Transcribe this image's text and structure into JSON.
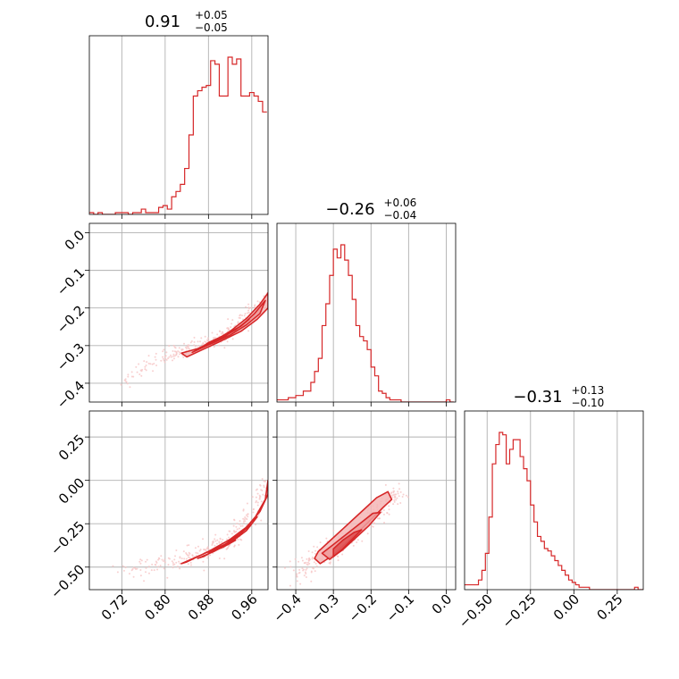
{
  "chart_data": {
    "type": "corner",
    "colors": {
      "main": "#d62728",
      "fill": "#f4b6b6",
      "scatter": "#f6c5c5",
      "grid": "#b0b0b0"
    },
    "grid": true,
    "parameters": [
      {
        "range": [
          0.66,
          0.99
        ],
        "ticks": [
          0.72,
          0.8,
          0.88,
          0.96
        ],
        "tick_labels": [
          "0.72",
          "0.80",
          "0.88",
          "0.96"
        ],
        "title": {
          "median": "0.91",
          "plus": "+0.05",
          "minus": "−0.05"
        }
      },
      {
        "range": [
          -0.45,
          0.025
        ],
        "ticks": [
          -0.4,
          -0.3,
          -0.2,
          -0.1,
          0.0
        ],
        "tick_labels": [
          "−0.4",
          "−0.3",
          "−0.2",
          "−0.1",
          "0.0"
        ],
        "title": {
          "median": "−0.26",
          "plus": "+0.06",
          "minus": "−0.04"
        }
      },
      {
        "range": [
          -0.63,
          0.4
        ],
        "ticks": [
          -0.5,
          -0.25,
          0.0,
          0.25
        ],
        "tick_labels": [
          "−0.50",
          "−0.25",
          "0.00",
          "0.25"
        ],
        "title": {
          "median": "−0.31",
          "plus": "+0.13",
          "minus": "−0.10"
        }
      }
    ],
    "histograms": [
      {
        "param": 0,
        "bin_edges": [
          0.66,
          0.668,
          0.676,
          0.684,
          0.692,
          0.7,
          0.708,
          0.716,
          0.724,
          0.732,
          0.74,
          0.748,
          0.756,
          0.764,
          0.772,
          0.78,
          0.788,
          0.796,
          0.804,
          0.812,
          0.82,
          0.828,
          0.836,
          0.844,
          0.852,
          0.86,
          0.868,
          0.876,
          0.884,
          0.892,
          0.9,
          0.908,
          0.916,
          0.924,
          0.932,
          0.94,
          0.948,
          0.956,
          0.964,
          0.972,
          0.98,
          0.988
        ],
        "counts": [
          1,
          0,
          1,
          0,
          0,
          0,
          1,
          1,
          1,
          0,
          1,
          1,
          3,
          1,
          1,
          1,
          4,
          5,
          3,
          10,
          13,
          17,
          26,
          45,
          67,
          70,
          72,
          73,
          87,
          85,
          67,
          67,
          89,
          85,
          88,
          67,
          67,
          69,
          67,
          64,
          58
        ]
      },
      {
        "param": 1,
        "bin_edges": [
          -0.45,
          -0.44,
          -0.43,
          -0.42,
          -0.41,
          -0.4,
          -0.39,
          -0.38,
          -0.37,
          -0.36,
          -0.35,
          -0.34,
          -0.33,
          -0.32,
          -0.31,
          -0.3,
          -0.29,
          -0.28,
          -0.27,
          -0.26,
          -0.25,
          -0.24,
          -0.23,
          -0.22,
          -0.21,
          -0.2,
          -0.19,
          -0.18,
          -0.17,
          -0.16,
          -0.15,
          -0.14,
          -0.13,
          -0.12,
          -0.11,
          -0.1,
          -0.09,
          -0.08,
          -0.07,
          -0.06,
          -0.05,
          -0.04,
          -0.03,
          -0.02,
          -0.01,
          0.0,
          0.01,
          0.02
        ],
        "counts": [
          1,
          1,
          1,
          2,
          2,
          3,
          3,
          5,
          5,
          9,
          14,
          20,
          35,
          45,
          58,
          70,
          66,
          72,
          65,
          58,
          47,
          35,
          30,
          28,
          24,
          16,
          12,
          5,
          4,
          2,
          1,
          1,
          1,
          0,
          0,
          0,
          0,
          0,
          0,
          0,
          0,
          0,
          0,
          0,
          0,
          1,
          0
        ]
      },
      {
        "param": 2,
        "bin_edges": [
          -0.63,
          -0.61,
          -0.59,
          -0.57,
          -0.55,
          -0.53,
          -0.51,
          -0.49,
          -0.47,
          -0.45,
          -0.43,
          -0.41,
          -0.39,
          -0.37,
          -0.35,
          -0.33,
          -0.31,
          -0.29,
          -0.27,
          -0.25,
          -0.23,
          -0.21,
          -0.19,
          -0.17,
          -0.15,
          -0.13,
          -0.11,
          -0.09,
          -0.07,
          -0.05,
          -0.03,
          -0.01,
          0.01,
          0.03,
          0.05,
          0.07,
          0.09,
          0.11,
          0.13,
          0.15,
          0.17,
          0.19,
          0.21,
          0.23,
          0.25,
          0.27,
          0.29,
          0.31,
          0.33,
          0.35,
          0.37,
          0.39,
          0.4
        ],
        "counts": [
          2,
          2,
          2,
          2,
          4,
          8,
          15,
          30,
          52,
          60,
          65,
          64,
          52,
          58,
          62,
          62,
          55,
          50,
          45,
          35,
          28,
          22,
          20,
          17,
          16,
          14,
          12,
          10,
          8,
          6,
          4,
          3,
          2,
          1,
          1,
          1,
          0,
          0,
          0,
          0,
          0,
          0,
          0,
          0,
          0,
          0,
          0,
          0,
          0,
          1,
          0,
          0
        ]
      }
    ],
    "pair_plots": [
      {
        "x_param": 0,
        "y_param": 1,
        "contours": [
          [
            [
              0.83,
              -0.32
            ],
            [
              0.86,
              -0.308
            ],
            [
              0.89,
              -0.288
            ],
            [
              0.92,
              -0.262
            ],
            [
              0.95,
              -0.228
            ],
            [
              0.975,
              -0.19
            ],
            [
              0.99,
              -0.16
            ],
            [
              0.99,
              -0.2
            ],
            [
              0.97,
              -0.23
            ],
            [
              0.94,
              -0.262
            ],
            [
              0.9,
              -0.29
            ],
            [
              0.87,
              -0.31
            ],
            [
              0.84,
              -0.33
            ]
          ],
          [
            [
              0.85,
              -0.318
            ],
            [
              0.88,
              -0.298
            ],
            [
              0.91,
              -0.275
            ],
            [
              0.94,
              -0.248
            ],
            [
              0.965,
              -0.215
            ],
            [
              0.985,
              -0.18
            ],
            [
              0.975,
              -0.215
            ],
            [
              0.95,
              -0.245
            ],
            [
              0.92,
              -0.272
            ],
            [
              0.89,
              -0.292
            ],
            [
              0.86,
              -0.31
            ]
          ],
          [
            [
              0.87,
              -0.302
            ],
            [
              0.9,
              -0.282
            ],
            [
              0.93,
              -0.258
            ],
            [
              0.955,
              -0.23
            ],
            [
              0.94,
              -0.248
            ],
            [
              0.91,
              -0.272
            ],
            [
              0.88,
              -0.292
            ]
          ]
        ],
        "scatter_center": [
          [
            0.72,
            -0.4
          ],
          [
            0.8,
            -0.33
          ],
          [
            0.84,
            -0.31
          ],
          [
            0.88,
            -0.29
          ],
          [
            0.92,
            -0.262
          ],
          [
            0.96,
            -0.215
          ],
          [
            0.99,
            -0.17
          ]
        ],
        "scatter_spread": 0.035
      },
      {
        "x_param": 0,
        "y_param": 2,
        "contours": [
          [
            [
              0.83,
              -0.48
            ],
            [
              0.87,
              -0.425
            ],
            [
              0.91,
              -0.37
            ],
            [
              0.94,
              -0.305
            ],
            [
              0.965,
              -0.22
            ],
            [
              0.985,
              -0.11
            ],
            [
              0.99,
              0.0
            ],
            [
              0.99,
              -0.08
            ],
            [
              0.975,
              -0.18
            ],
            [
              0.95,
              -0.27
            ],
            [
              0.92,
              -0.34
            ],
            [
              0.88,
              -0.41
            ],
            [
              0.84,
              -0.47
            ]
          ],
          [
            [
              0.86,
              -0.45
            ],
            [
              0.89,
              -0.41
            ],
            [
              0.92,
              -0.36
            ],
            [
              0.95,
              -0.29
            ],
            [
              0.97,
              -0.21
            ],
            [
              0.96,
              -0.25
            ],
            [
              0.93,
              -0.33
            ],
            [
              0.9,
              -0.39
            ],
            [
              0.87,
              -0.44
            ]
          ],
          [
            [
              0.88,
              -0.42
            ],
            [
              0.91,
              -0.38
            ],
            [
              0.93,
              -0.345
            ],
            [
              0.9,
              -0.39
            ]
          ]
        ],
        "scatter_center": [
          [
            0.72,
            -0.53
          ],
          [
            0.8,
            -0.49
          ],
          [
            0.84,
            -0.455
          ],
          [
            0.88,
            -0.405
          ],
          [
            0.92,
            -0.34
          ],
          [
            0.96,
            -0.215
          ],
          [
            0.99,
            0.0
          ]
        ],
        "scatter_spread": 0.05
      },
      {
        "x_param": 1,
        "y_param": 2,
        "contours": [
          [
            [
              -0.335,
              -0.48
            ],
            [
              -0.3,
              -0.43
            ],
            [
              -0.265,
              -0.36
            ],
            [
              -0.23,
              -0.29
            ],
            [
              -0.195,
              -0.215
            ],
            [
              -0.165,
              -0.15
            ],
            [
              -0.145,
              -0.11
            ],
            [
              -0.155,
              -0.065
            ],
            [
              -0.185,
              -0.1
            ],
            [
              -0.215,
              -0.16
            ],
            [
              -0.245,
              -0.22
            ],
            [
              -0.275,
              -0.28
            ],
            [
              -0.31,
              -0.35
            ],
            [
              -0.34,
              -0.41
            ],
            [
              -0.35,
              -0.45
            ]
          ],
          [
            [
              -0.31,
              -0.455
            ],
            [
              -0.275,
              -0.4
            ],
            [
              -0.24,
              -0.33
            ],
            [
              -0.205,
              -0.26
            ],
            [
              -0.175,
              -0.185
            ],
            [
              -0.195,
              -0.19
            ],
            [
              -0.23,
              -0.25
            ],
            [
              -0.265,
              -0.31
            ],
            [
              -0.3,
              -0.37
            ],
            [
              -0.33,
              -0.42
            ]
          ],
          [
            [
              -0.3,
              -0.44
            ],
            [
              -0.275,
              -0.395
            ],
            [
              -0.25,
              -0.34
            ],
            [
              -0.225,
              -0.285
            ],
            [
              -0.245,
              -0.3
            ],
            [
              -0.275,
              -0.345
            ],
            [
              -0.3,
              -0.395
            ]
          ]
        ],
        "scatter_center": [
          [
            -0.4,
            -0.52
          ],
          [
            -0.35,
            -0.48
          ],
          [
            -0.3,
            -0.4
          ],
          [
            -0.25,
            -0.31
          ],
          [
            -0.2,
            -0.22
          ],
          [
            -0.15,
            -0.11
          ],
          [
            -0.13,
            -0.06
          ]
        ],
        "scatter_spread": 0.05
      }
    ]
  }
}
